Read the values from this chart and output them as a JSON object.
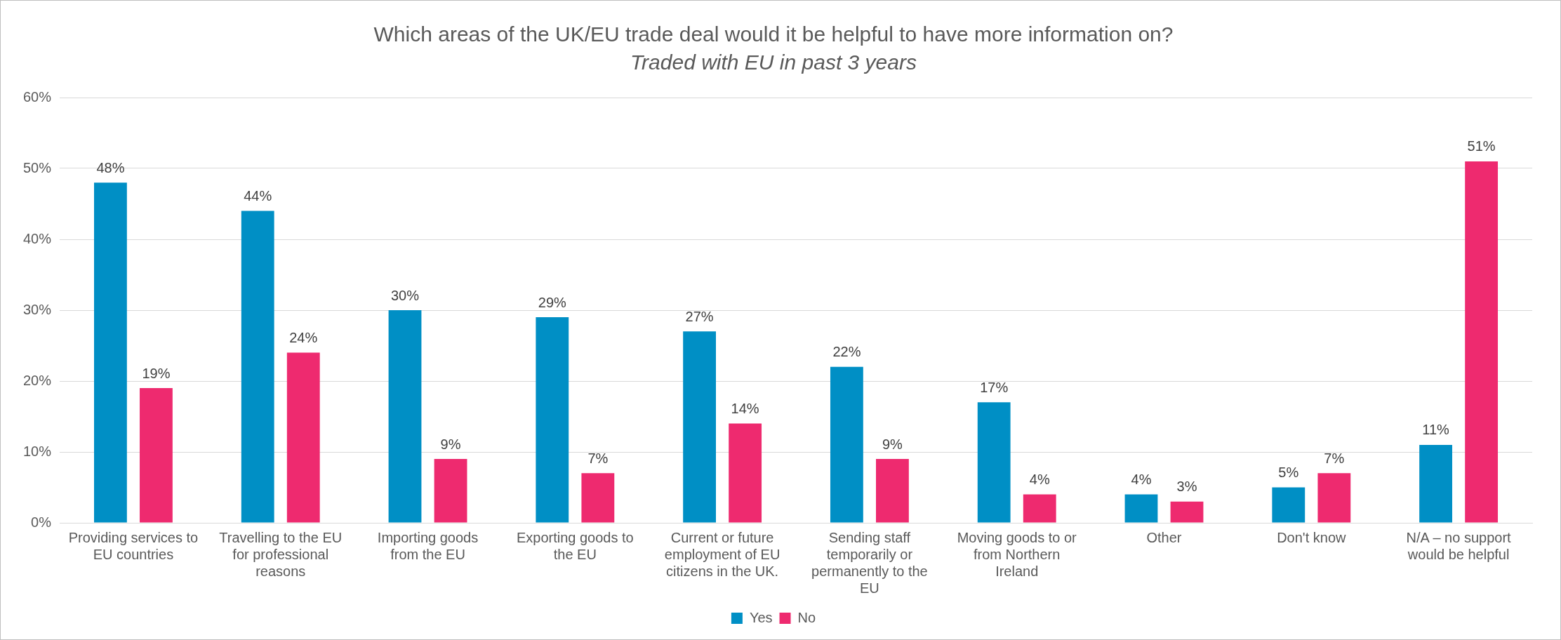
{
  "chart_data": {
    "type": "bar",
    "title": "Which areas of the UK/EU trade deal would it be helpful to have more information on?",
    "subtitle": "Traded with EU in past 3 years",
    "categories": [
      "Providing services to EU countries",
      "Travelling to the EU for professional reasons",
      "Importing goods from the EU",
      "Exporting goods to the EU",
      "Current or future employment of EU citizens in the UK.",
      "Sending staff temporarily or permanently to the EU",
      "Moving goods to or from Northern Ireland",
      "Other",
      "Don't know",
      "N/A – no support would be helpful"
    ],
    "series": [
      {
        "name": "Yes",
        "color": "#008fc5",
        "values": [
          48,
          44,
          30,
          29,
          27,
          22,
          17,
          4,
          5,
          11
        ],
        "value_labels": [
          "48%",
          "44%",
          "30%",
          "29%",
          "27%",
          "22%",
          "17%",
          "4%",
          "5%",
          "11%"
        ]
      },
      {
        "name": "No",
        "color": "#ee2a6f",
        "values": [
          19,
          24,
          9,
          7,
          14,
          9,
          4,
          3,
          7,
          51
        ],
        "value_labels": [
          "19%",
          "24%",
          "9%",
          "7%",
          "14%",
          "9%",
          "4%",
          "3%",
          "7%",
          "51%"
        ]
      }
    ],
    "ylim": [
      0,
      60
    ],
    "yticks": [
      {
        "value": 0,
        "label": "0%"
      },
      {
        "value": 10,
        "label": "10%"
      },
      {
        "value": 20,
        "label": "20%"
      },
      {
        "value": 30,
        "label": "30%"
      },
      {
        "value": 40,
        "label": "40%"
      },
      {
        "value": 50,
        "label": "50%"
      },
      {
        "value": 60,
        "label": "60%"
      }
    ],
    "grid": "y",
    "legend": "bottom"
  }
}
